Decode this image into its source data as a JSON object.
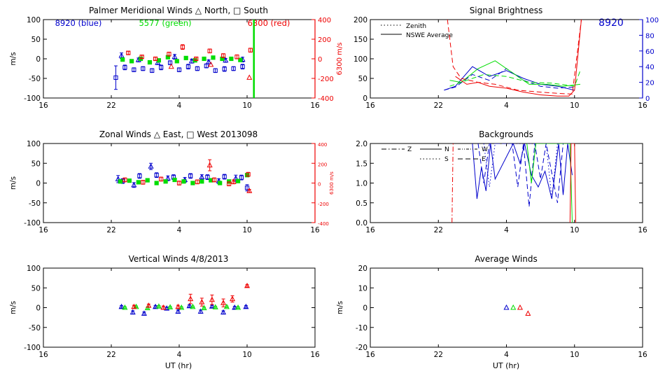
{
  "colors": {
    "axis": "#000000",
    "blue": "#0000cc",
    "green": "#00dd00",
    "red": "#ee0000",
    "background": "#ffffff"
  },
  "chart_data": [
    {
      "id": "meridional",
      "type": "scatter",
      "title": "Palmer Meridional Winds △ North, □ South",
      "xlabel": "",
      "ylabel": "m/s",
      "y2label": "6300 m/s",
      "xlim": [
        16,
        40
      ],
      "xticks": [
        16,
        22,
        28,
        34,
        40
      ],
      "xticklabels": [
        "16",
        "22",
        "4",
        "10",
        "16"
      ],
      "ylim": [
        -100,
        100
      ],
      "yticks": [
        -100,
        -50,
        0,
        50,
        100
      ],
      "y2lim": [
        -400,
        400
      ],
      "y2ticks": [
        -400,
        -200,
        0,
        200,
        400
      ],
      "legend": {
        "blue": "8920 (blue)",
        "green": "5577 (green)",
        "red": "6300 (red)"
      },
      "series": [
        {
          "name": "8920 north",
          "color": "blue",
          "marker": "triangle",
          "x": [
            22.9,
            24.4,
            26.1,
            27.6,
            29.1,
            30.6,
            32.1,
            33.6
          ],
          "y": [
            8,
            -3,
            -10,
            5,
            -6,
            -8,
            -4,
            -2
          ],
          "err": [
            7,
            5,
            5,
            6,
            5,
            5,
            5,
            6
          ]
        },
        {
          "name": "8920 south",
          "color": "blue",
          "marker": "square",
          "x": [
            22.4,
            23.2,
            24.0,
            24.8,
            25.6,
            26.4,
            27.2,
            28.0,
            28.8,
            29.6,
            30.4,
            31.2,
            32.0,
            32.8,
            33.6
          ],
          "y": [
            -48,
            -22,
            -28,
            -25,
            -30,
            -22,
            -10,
            -28,
            -20,
            -25,
            -18,
            -30,
            -26,
            -25,
            -20
          ],
          "err": [
            30,
            6,
            5,
            5,
            5,
            6,
            5,
            5,
            6,
            5,
            5,
            5,
            6,
            5,
            6
          ]
        },
        {
          "name": "5577",
          "color": "green",
          "marker": "square",
          "x": [
            23.0,
            23.8,
            24.6,
            25.4,
            26.2,
            27.0,
            27.8,
            28.6,
            29.4,
            30.2,
            31.0,
            31.8,
            32.6,
            33.4
          ],
          "y": [
            -2,
            -6,
            0,
            -9,
            -4,
            4,
            -6,
            2,
            -4,
            0,
            3,
            0,
            0,
            -3
          ],
          "err": [
            2,
            2,
            2,
            2,
            2,
            2,
            2,
            2,
            2,
            2,
            2,
            2,
            2,
            2
          ]
        },
        {
          "name": "6300",
          "color": "red",
          "marker": "square",
          "x": [
            23.5,
            24.7,
            25.9,
            27.1,
            28.3,
            29.5,
            30.7,
            31.9,
            33.1,
            34.3
          ],
          "y": [
            15,
            5,
            0,
            12,
            30,
            0,
            20,
            8,
            5,
            22
          ],
          "err": [
            4,
            4,
            4,
            5,
            6,
            4,
            5,
            5,
            5,
            5
          ]
        }
      ],
      "red_triangles": {
        "x": [
          27.3,
          30.8,
          34.2
        ],
        "y": [
          -20,
          -15,
          -48
        ]
      },
      "vline": {
        "x": 34.6,
        "color": "green"
      }
    },
    {
      "id": "zonal",
      "type": "scatter",
      "title": "Zonal Winds △ East, □ West 2013098",
      "xlabel": "",
      "ylabel": "m/s",
      "y2label": "6300 m/s",
      "xlim": [
        16,
        40
      ],
      "xticks": [
        16,
        22,
        28,
        34,
        40
      ],
      "xticklabels": [
        "16",
        "22",
        "4",
        "10",
        "16"
      ],
      "ylim": [
        -100,
        100
      ],
      "yticks": [
        -100,
        -50,
        0,
        50,
        100
      ],
      "y2lim": [
        -400,
        400
      ],
      "y2ticks": [
        -400,
        -200,
        0,
        200,
        400
      ],
      "series": [
        {
          "name": "8920 east",
          "color": "blue",
          "marker": "triangle",
          "x": [
            22.6,
            24.0,
            25.5,
            27.0,
            28.5,
            30.0,
            31.5,
            33.0
          ],
          "y": [
            10,
            -5,
            42,
            12,
            8,
            15,
            5,
            12
          ],
          "err": [
            9,
            6,
            8,
            6,
            6,
            6,
            6,
            8
          ]
        },
        {
          "name": "8920 west",
          "color": "blue",
          "marker": "square",
          "x": [
            23.0,
            24.5,
            26.0,
            27.5,
            29.0,
            30.5,
            32.0,
            33.5,
            34.0
          ],
          "y": [
            5,
            18,
            20,
            15,
            18,
            15,
            16,
            14,
            -12
          ],
          "err": [
            6,
            6,
            6,
            6,
            6,
            6,
            6,
            6,
            8
          ]
        },
        {
          "name": "5577",
          "color": "green",
          "marker": "square",
          "x": [
            22.8,
            23.6,
            24.4,
            25.2,
            26.0,
            26.8,
            27.6,
            28.4,
            29.2,
            30.0,
            30.8,
            31.6,
            32.4,
            33.2,
            34.0
          ],
          "y": [
            4,
            6,
            2,
            7,
            0,
            4,
            8,
            4,
            0,
            4,
            7,
            0,
            4,
            5,
            20
          ],
          "err": [
            2,
            2,
            2,
            2,
            2,
            2,
            2,
            2,
            2,
            2,
            2,
            2,
            2,
            2,
            2
          ]
        },
        {
          "name": "6300",
          "color": "red",
          "marker": "square",
          "x": [
            23.2,
            24.8,
            26.4,
            28.0,
            29.6,
            31.1,
            32.4,
            34.1
          ],
          "y": [
            8,
            2,
            10,
            0,
            3,
            8,
            -2,
            22
          ],
          "err": [
            5,
            5,
            5,
            5,
            5,
            5,
            5,
            5
          ]
        },
        {
          "name": "6300 triangles",
          "color": "red",
          "marker": "triangle",
          "x": [
            30.7,
            32.8,
            34.2
          ],
          "y": [
            45,
            3,
            -20
          ],
          "err": [
            14,
            5,
            4
          ]
        }
      ]
    },
    {
      "id": "vertical",
      "type": "scatter",
      "title": "Vertical Winds 4/8/2013",
      "xlabel": "UT (hr)",
      "ylabel": "m/s",
      "xlim": [
        16,
        40
      ],
      "xticks": [
        16,
        22,
        28,
        34,
        40
      ],
      "xticklabels": [
        "16",
        "22",
        "4",
        "10",
        "16"
      ],
      "ylim": [
        -100,
        100
      ],
      "yticks": [
        -100,
        -50,
        0,
        50,
        100
      ],
      "series": [
        {
          "name": "8920",
          "color": "blue",
          "marker": "triangle",
          "x": [
            22.9,
            23.9,
            24.9,
            25.9,
            26.9,
            27.9,
            28.9,
            29.9,
            30.9,
            31.9,
            32.9,
            33.9
          ],
          "y": [
            2,
            -12,
            -15,
            2,
            -2,
            -10,
            4,
            -10,
            3,
            -12,
            0,
            2
          ],
          "err": [
            3,
            4,
            4,
            3,
            3,
            4,
            3,
            4,
            3,
            4,
            3,
            3
          ]
        },
        {
          "name": "5577",
          "color": "green",
          "marker": "triangle",
          "x": [
            23.2,
            24.2,
            25.2,
            26.2,
            27.2,
            28.2,
            29.2,
            30.2,
            31.2,
            32.2,
            33.2
          ],
          "y": [
            0,
            2,
            -1,
            3,
            1,
            0,
            2,
            -1,
            1,
            2,
            0
          ],
          "err": [
            2,
            2,
            2,
            2,
            2,
            2,
            2,
            2,
            2,
            2,
            2
          ]
        },
        {
          "name": "6300",
          "color": "red",
          "marker": "triangle",
          "x": [
            24.0,
            25.3,
            26.6,
            27.9,
            29.0,
            30.0,
            30.9,
            31.9,
            32.7,
            34.0
          ],
          "y": [
            2,
            5,
            0,
            2,
            22,
            14,
            20,
            12,
            22,
            55
          ],
          "err": [
            4,
            4,
            4,
            4,
            12,
            10,
            12,
            10,
            8,
            3
          ]
        }
      ]
    },
    {
      "id": "brightness",
      "type": "line",
      "title": "Signal Brightness",
      "xlabel": "",
      "ylabel": "",
      "xlim": [
        16,
        40
      ],
      "xticks": [
        16,
        22,
        28,
        34,
        40
      ],
      "xticklabels": [
        "16",
        "22",
        "4",
        "10",
        "16"
      ],
      "ylim": [
        0,
        200
      ],
      "yticks": [
        0,
        50,
        100,
        150,
        200
      ],
      "y2lim": [
        0,
        100
      ],
      "y2ticks": [
        0,
        20,
        40,
        60,
        80,
        100
      ],
      "station_label": "8920",
      "legend": {
        "zenith": "Zenith",
        "average": "NSWE Average"
      },
      "series": [
        {
          "name": "blue avg",
          "color": "blue",
          "style": "solid",
          "x": [
            22.5,
            23.5,
            25.0,
            26.5,
            28.0,
            29.5,
            31.0,
            32.5,
            34.0
          ],
          "y": [
            20,
            30,
            80,
            55,
            70,
            50,
            35,
            30,
            20
          ]
        },
        {
          "name": "blue zenith",
          "color": "blue",
          "style": "dashed",
          "x": [
            22.5,
            23.5,
            25.0,
            26.5,
            28.0,
            29.5,
            31.0,
            32.5,
            34.0
          ],
          "y": [
            20,
            28,
            60,
            45,
            75,
            45,
            30,
            25,
            28
          ]
        },
        {
          "name": "green avg",
          "color": "green",
          "style": "solid",
          "x": [
            23.0,
            24.0,
            25.5,
            27.0,
            28.5,
            30.0,
            31.5,
            33.0,
            34.5
          ],
          "y": [
            45,
            40,
            75,
            95,
            65,
            35,
            35,
            30,
            35
          ]
        },
        {
          "name": "green zenith",
          "color": "green",
          "style": "dashed",
          "x": [
            23.0,
            24.5,
            26.0,
            28.0,
            30.0,
            32.0,
            34.0,
            34.5
          ],
          "y": [
            30,
            45,
            60,
            55,
            40,
            38,
            30,
            70
          ]
        },
        {
          "name": "red avg",
          "color": "red",
          "style": "solid",
          "x": [
            23.5,
            24.5,
            25.5,
            26.5,
            28.0,
            29.5,
            31.0,
            32.5,
            33.5,
            34.0,
            34.6
          ],
          "y": [
            55,
            35,
            40,
            30,
            25,
            15,
            8,
            5,
            5,
            20,
            200
          ]
        },
        {
          "name": "red zenith",
          "color": "red",
          "style": "dashed",
          "x": [
            22.8,
            23.3,
            24.0,
            25.5,
            27.0,
            29.0,
            31.0,
            32.5,
            33.8,
            34.6
          ],
          "y": [
            200,
            80,
            50,
            40,
            35,
            20,
            15,
            12,
            10,
            200
          ]
        }
      ]
    },
    {
      "id": "backgrounds",
      "type": "line",
      "title": "Backgrounds",
      "xlabel": "",
      "ylabel": "",
      "xlim": [
        16,
        40
      ],
      "xticks": [
        16,
        22,
        28,
        34,
        40
      ],
      "xticklabels": [
        "16",
        "22",
        "4",
        "10",
        "16"
      ],
      "ylim": [
        0,
        2
      ],
      "yticks": [
        0.0,
        0.5,
        1.0,
        1.5,
        2.0
      ],
      "yticklabels": [
        "0.0",
        "0.5",
        "1.0",
        "1.5",
        "2.0"
      ],
      "legend": {
        "z": "Z",
        "n": "N",
        "s": "S",
        "w": "W",
        "e": "E"
      },
      "series": [
        {
          "name": "blue N",
          "color": "blue",
          "style": "solid",
          "x": [
            25.0,
            25.4,
            25.8,
            26.2,
            26.6,
            27.0,
            28.6,
            29.2,
            29.6,
            30.2,
            30.8,
            31.4,
            32.0,
            32.6,
            33.0,
            33.4,
            33.8
          ],
          "y": [
            2.0,
            0.6,
            1.4,
            0.8,
            2.0,
            1.1,
            2.0,
            1.5,
            2.0,
            1.2,
            0.9,
            1.3,
            0.6,
            2.0,
            0.7,
            2.0,
            1.2
          ]
        },
        {
          "name": "blue E",
          "color": "blue",
          "style": "dashed",
          "x": [
            25.5,
            26.0,
            26.5,
            28.5,
            29.0,
            29.5,
            30.0,
            30.5,
            31.0,
            31.5,
            32.5,
            33.0
          ],
          "y": [
            2.0,
            1.0,
            2.0,
            2.0,
            0.9,
            2.0,
            0.4,
            2.0,
            1.1,
            2.0,
            0.5,
            2.0
          ]
        },
        {
          "name": "blue S",
          "color": "blue",
          "style": "dotted",
          "x": [
            26.0,
            26.5,
            27.0,
            31.5,
            32.0,
            32.5
          ],
          "y": [
            2.0,
            0.9,
            2.0,
            2.0,
            0.6,
            2.0
          ]
        },
        {
          "name": "green",
          "color": "green",
          "style": "solid",
          "x": [
            29.8,
            30.2,
            30.6,
            33.6,
            33.8
          ],
          "y": [
            2.0,
            1.0,
            2.0,
            2.0,
            0.0
          ]
        },
        {
          "name": "red Z",
          "color": "red",
          "style": "dashdot",
          "x": [
            23.2,
            23.3
          ],
          "y": [
            0.0,
            2.0
          ]
        },
        {
          "name": "red",
          "color": "red",
          "style": "solid",
          "x": [
            33.6,
            33.7,
            34.0,
            34.1
          ],
          "y": [
            0.0,
            2.0,
            2.0,
            0.0
          ]
        }
      ]
    },
    {
      "id": "average",
      "type": "scatter",
      "title": "Average Winds",
      "xlabel": "UT (hr)",
      "ylabel": "m/s",
      "xlim": [
        16,
        40
      ],
      "xticks": [
        16,
        22,
        28,
        34,
        40
      ],
      "xticklabels": [
        "16",
        "22",
        "4",
        "10",
        "16"
      ],
      "ylim": [
        -20,
        20
      ],
      "yticks": [
        -20,
        -10,
        0,
        10,
        20
      ],
      "series": [
        {
          "name": "8920",
          "color": "blue",
          "marker": "triangle",
          "x": [
            28.0
          ],
          "y": [
            0
          ]
        },
        {
          "name": "5577",
          "color": "green",
          "marker": "triangle",
          "x": [
            28.6
          ],
          "y": [
            0
          ]
        },
        {
          "name": "6300",
          "color": "red",
          "marker": "triangle",
          "x": [
            29.2,
            29.9
          ],
          "y": [
            0,
            -3
          ]
        }
      ]
    }
  ]
}
